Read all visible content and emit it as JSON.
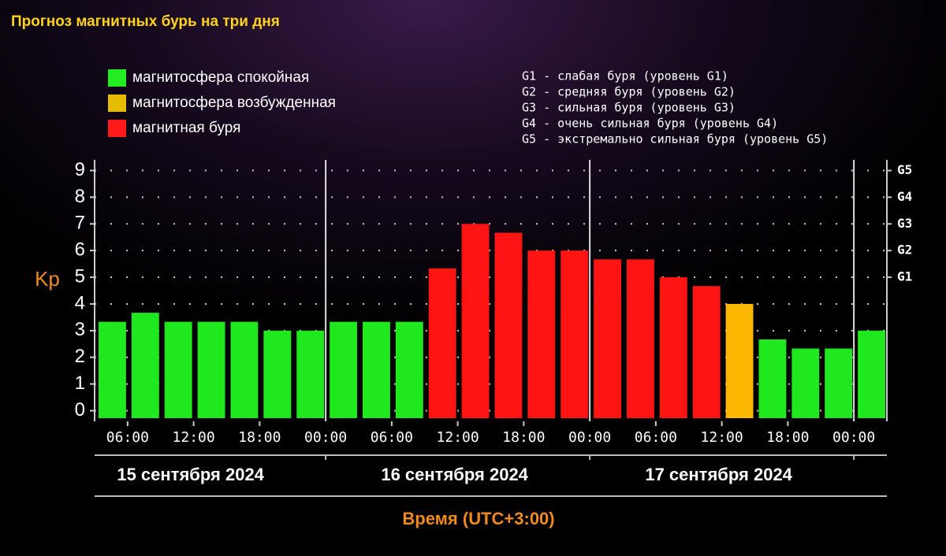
{
  "chart_data": {
    "type": "histogram",
    "title": "Прогноз магнитных бурь на три дня",
    "ylabel": "Kp",
    "xlabel": "Время (UTC+3:00)",
    "legend": [
      {
        "label": "магнитосфера спокойная",
        "color": "#22ee22"
      },
      {
        "label": "магнитосфера возбужденная",
        "color": "#e6bb00"
      },
      {
        "label": "магнитная буря",
        "color": "#ff1a1a"
      }
    ],
    "storm_levels": [
      "G1 - слабая буря (уровень G1)",
      "G2 - средняя буря (уровень G2)",
      "G3 - сильная буря (уровень G3)",
      "G4 - очень сильная буря (уровень G4)",
      "G5 - экстремально сильная буря (уровень G5)"
    ],
    "bins": [
      3,
      6,
      9,
      12,
      15,
      18,
      21,
      24,
      27,
      30,
      33,
      36,
      39,
      42,
      45,
      48,
      51,
      54,
      57,
      60,
      63,
      66,
      69,
      72,
      75
    ],
    "values": [
      3.33,
      3.67,
      3.33,
      3.33,
      3.33,
      3,
      3,
      3.33,
      3.33,
      3.33,
      5.33,
      7,
      6.67,
      6,
      6,
      5.67,
      5.67,
      5,
      4.67,
      4,
      2.67,
      2.33,
      2.33,
      3
    ],
    "colors": [
      "#1fe81f",
      "#1fe81f",
      "#1fe81f",
      "#1fe81f",
      "#1fe81f",
      "#1fe81f",
      "#1fe81f",
      "#1fe81f",
      "#1fe81f",
      "#1fe81f",
      "#ff1414",
      "#ff1414",
      "#ff1414",
      "#ff1414",
      "#ff1414",
      "#ff1414",
      "#ff1414",
      "#ff1414",
      "#ff1414",
      "#ffb800",
      "#1fe81f",
      "#1fe81f",
      "#1fe81f",
      "#1fe81f"
    ],
    "xlim": [
      3,
      75
    ],
    "xticks": [
      {
        "value": 6,
        "label": "06:00"
      },
      {
        "value": 12,
        "label": "12:00"
      },
      {
        "value": 18,
        "label": "18:00"
      },
      {
        "value": 24,
        "label": "00:00"
      },
      {
        "value": 30,
        "label": "06:00"
      },
      {
        "value": 36,
        "label": "12:00"
      },
      {
        "value": 42,
        "label": "18:00"
      },
      {
        "value": 48,
        "label": "00:00"
      },
      {
        "value": 54,
        "label": "06:00"
      },
      {
        "value": 60,
        "label": "12:00"
      },
      {
        "value": 66,
        "label": "18:00"
      },
      {
        "value": 72,
        "label": "00:00"
      }
    ],
    "day_labels": [
      {
        "value": 12,
        "label": "15 сентября 2024"
      },
      {
        "value": 36,
        "label": "16 сентября 2024"
      },
      {
        "value": 60,
        "label": "17 сентября 2024"
      }
    ],
    "ylim": [
      -0.4,
      9.4
    ],
    "yticks": [
      0,
      1,
      2,
      3,
      4,
      5,
      6,
      7,
      8,
      9
    ],
    "y2lim": [
      -0.4,
      9.4
    ],
    "y2ticks": [
      {
        "value": 5,
        "label": "G1"
      },
      {
        "value": 6,
        "label": "G2"
      },
      {
        "value": 7,
        "label": "G3"
      },
      {
        "value": 8,
        "label": "G4"
      },
      {
        "value": 9,
        "label": "G5"
      }
    ],
    "grid": true
  }
}
